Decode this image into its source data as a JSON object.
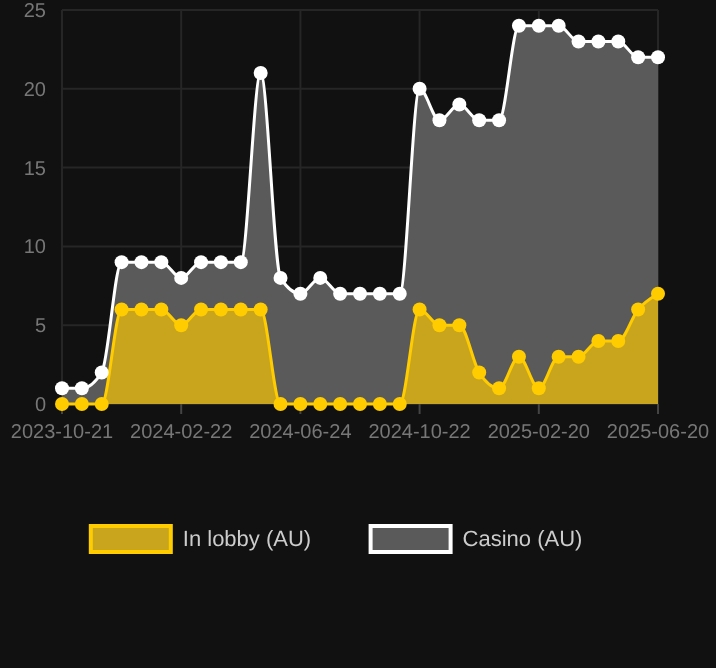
{
  "chart_data": {
    "type": "area",
    "categories": [
      "2023-10-21",
      null,
      null,
      null,
      null,
      null,
      "2024-02-22",
      null,
      null,
      null,
      null,
      null,
      "2024-06-24",
      null,
      null,
      null,
      null,
      null,
      "2024-10-22",
      null,
      null,
      null,
      null,
      null,
      "2025-02-20",
      null,
      null,
      null,
      null,
      null,
      "2025-06-20"
    ],
    "series": [
      {
        "name": "In lobby (AU)",
        "color": "#ffcc00",
        "values": [
          0,
          0,
          0,
          6,
          6,
          6,
          5,
          6,
          6,
          6,
          6,
          0,
          0,
          0,
          0,
          0,
          0,
          0,
          6,
          5,
          5,
          2,
          1,
          3,
          1,
          3,
          3,
          4,
          4,
          6,
          7
        ]
      },
      {
        "name": "Casino (AU)",
        "color": "#ffffff",
        "values": [
          1,
          1,
          2,
          9,
          9,
          9,
          8,
          9,
          9,
          9,
          21,
          8,
          7,
          8,
          7,
          7,
          7,
          7,
          20,
          18,
          19,
          18,
          18,
          24,
          24,
          24,
          23,
          23,
          23,
          22,
          22
        ]
      }
    ],
    "ylim": [
      0,
      25
    ],
    "yticks": [
      0,
      5,
      10,
      15,
      20,
      25
    ],
    "grid": true,
    "legend": "bottom",
    "marker": "circle"
  }
}
